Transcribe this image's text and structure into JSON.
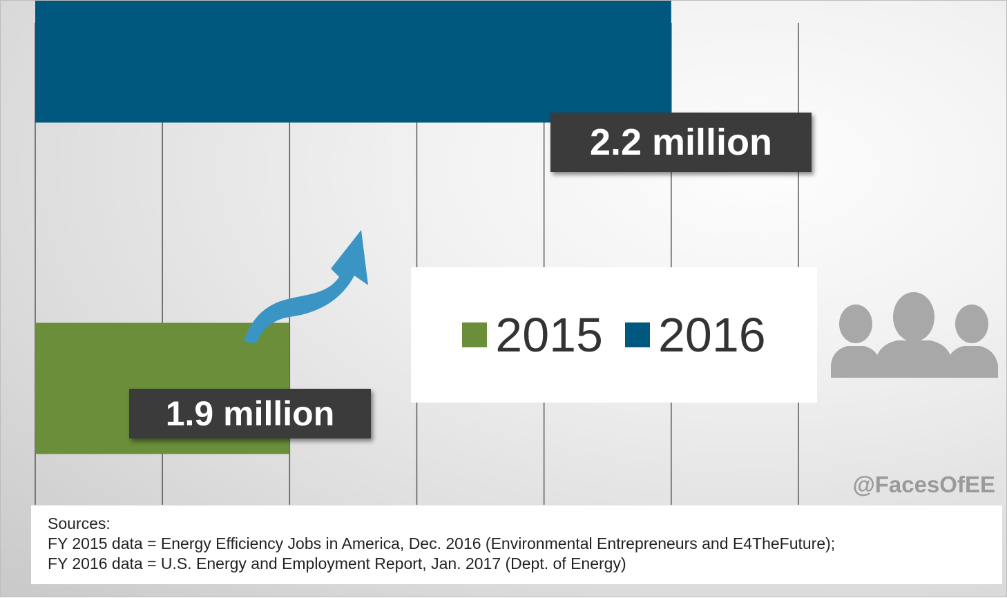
{
  "chart_data": {
    "type": "bar",
    "orientation": "horizontal",
    "categories": [
      "2016",
      "2015"
    ],
    "series": [
      {
        "name": "2015",
        "values": [
          null,
          1.9
        ],
        "color": "#6a8e3a"
      },
      {
        "name": "2016",
        "values": [
          2.2,
          null
        ],
        "color": "#00587f"
      }
    ],
    "value_labels": {
      "2016": "2.2 million",
      "2015": "1.9 million"
    },
    "xlim": [
      1.7,
      2.3
    ],
    "gridlines": [
      1.7,
      1.8,
      1.9,
      2.0,
      2.1,
      2.2,
      2.3
    ],
    "grid": true,
    "legend": {
      "placement": "center-right",
      "items": [
        "2015",
        "2016"
      ]
    },
    "title": "",
    "xlabel": "",
    "ylabel": ""
  },
  "colors": {
    "year_2015": "#6a8e3a",
    "year_2016": "#00587f",
    "arrow": "#3b95c4",
    "gridline": "#5a5a5a",
    "label_bg": "#3b3b3b",
    "icon": "#a8a8a8"
  },
  "decorations": {
    "arrow_icon": "curved-up-arrow-icon",
    "people_icon": "people-group-icon"
  },
  "handle": "@FacesOfEE",
  "sources": {
    "heading": "Sources:",
    "lines": [
      "FY 2015 data = Energy Efficiency Jobs in America, Dec. 2016 (Environmental Entrepreneurs and E4TheFuture);",
      "FY 2016 data = U.S. Energy and Employment Report, Jan. 2017 (Dept. of Energy)"
    ]
  }
}
